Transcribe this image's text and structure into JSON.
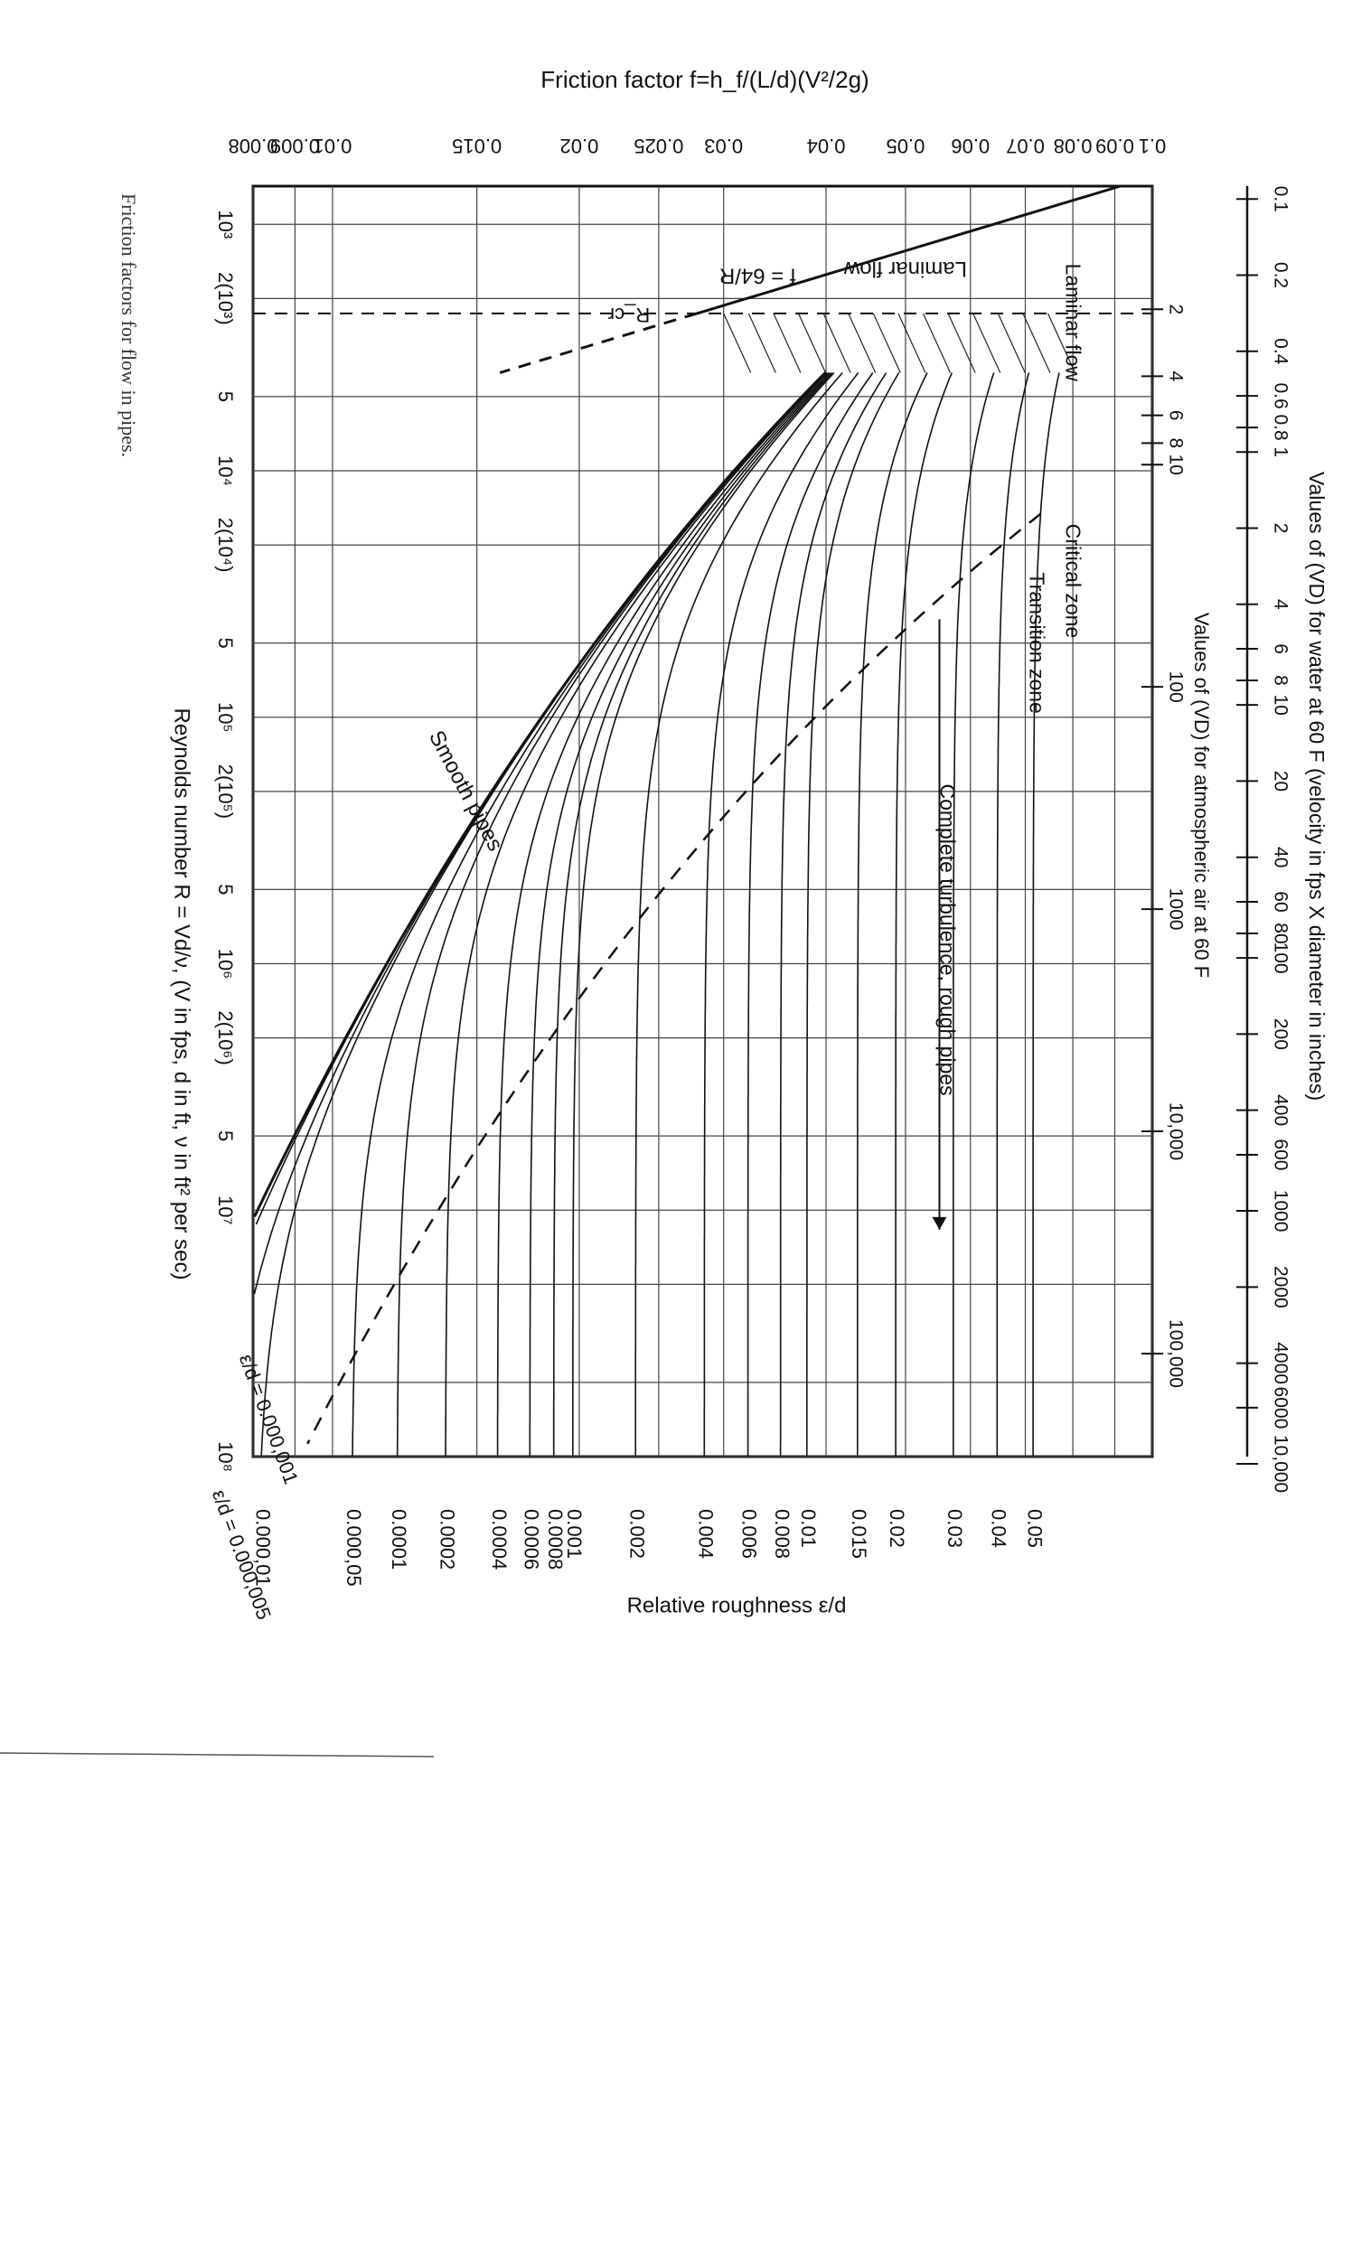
{
  "chart_data": {
    "type": "line",
    "title": "Friction factor f=h_f/(L/d)(V²/2g)",
    "xlabel": "Reynolds number R = Vd/ν, (V in fps, d in ft, ν in ft² per sec)",
    "ylabel": "Friction factor f=h_f/(L/d)(V²/2g)",
    "caption": "Friction factors for flow in pipes.",
    "xscale": "log",
    "yscale": "log",
    "xlim": [
      700,
      100000000
    ],
    "ylim": [
      0.008,
      0.1
    ],
    "x_ticks": [
      "10³",
      "2(10³)",
      "5",
      "10⁴",
      "2(10⁴)",
      "5",
      "10⁵",
      "2(10⁵)",
      "5",
      "10⁶",
      "2(10⁶)",
      "5",
      "10⁷",
      "10⁸"
    ],
    "y_ticks": [
      "0.008",
      "0.009",
      "0.01",
      "0.015",
      "0.02",
      "0.025",
      "0.03",
      "0.04",
      "0.05",
      "0.06",
      "0.07",
      "0.08",
      "0.09",
      "0.1"
    ],
    "top_axis_1": {
      "label": "Values of (VD) for water at 60 F (velocity in fps X diameter in inches)",
      "ticks": [
        "0.1",
        "0.2",
        "0.4",
        "0.6",
        "0.8",
        "1",
        "2",
        "4",
        "6",
        "8",
        "10",
        "20",
        "40",
        "60",
        "80",
        "100",
        "200",
        "400",
        "600",
        "1000",
        "2000",
        "4000",
        "6000",
        "10,000"
      ]
    },
    "top_axis_2": {
      "label": "Values of (VD) for atmospheric air at 60 F",
      "ticks": [
        "2",
        "4",
        "6",
        "8",
        "10",
        "100",
        "1000",
        "10,000",
        "100,000"
      ]
    },
    "right_axis": {
      "label": "Relative roughness ε/d",
      "ticks": [
        "0.05",
        "0.04",
        "0.03",
        "0.02",
        "0.015",
        "0.01",
        "0.008",
        "0.006",
        "0.004",
        "0.002",
        "0.001",
        "0.0008",
        "0.0006",
        "0.0004",
        "0.0002",
        "0.0001",
        "0.000,05",
        "0.000,01"
      ],
      "extra_labels": [
        "ε/d = 0.000,005",
        "ε/d = 0.000,001"
      ]
    },
    "zones": [
      "Laminar flow",
      "Critical zone",
      "Transition zone",
      "Complete turbulence, rough pipes"
    ],
    "annotations": [
      "Laminar flow",
      "f = 64/R",
      "R_cr",
      "Smooth pipes"
    ],
    "laminar": {
      "x": [
        700,
        2300
      ],
      "y": [
        0.0914,
        0.0278
      ]
    },
    "series": [
      {
        "name": "0.05",
        "roughness": 0.05
      },
      {
        "name": "0.04",
        "roughness": 0.04
      },
      {
        "name": "0.03",
        "roughness": 0.03
      },
      {
        "name": "0.02",
        "roughness": 0.02
      },
      {
        "name": "0.015",
        "roughness": 0.015
      },
      {
        "name": "0.01",
        "roughness": 0.01
      },
      {
        "name": "0.008",
        "roughness": 0.008
      },
      {
        "name": "0.006",
        "roughness": 0.006
      },
      {
        "name": "0.004",
        "roughness": 0.004
      },
      {
        "name": "0.002",
        "roughness": 0.002
      },
      {
        "name": "0.001",
        "roughness": 0.001
      },
      {
        "name": "0.0008",
        "roughness": 0.0008
      },
      {
        "name": "0.0006",
        "roughness": 0.0006
      },
      {
        "name": "0.0004",
        "roughness": 0.0004
      },
      {
        "name": "0.0002",
        "roughness": 0.0002
      },
      {
        "name": "0.0001",
        "roughness": 0.0001
      },
      {
        "name": "0.000,05",
        "roughness": 5e-05
      },
      {
        "name": "0.000,01",
        "roughness": 1e-05
      },
      {
        "name": "0.000,005",
        "roughness": 5e-06
      },
      {
        "name": "0.000,001",
        "roughness": 1e-06
      },
      {
        "name": "Smooth pipes",
        "roughness": 0
      }
    ],
    "grid": true,
    "orientation": "rotated 90° clockwise"
  }
}
